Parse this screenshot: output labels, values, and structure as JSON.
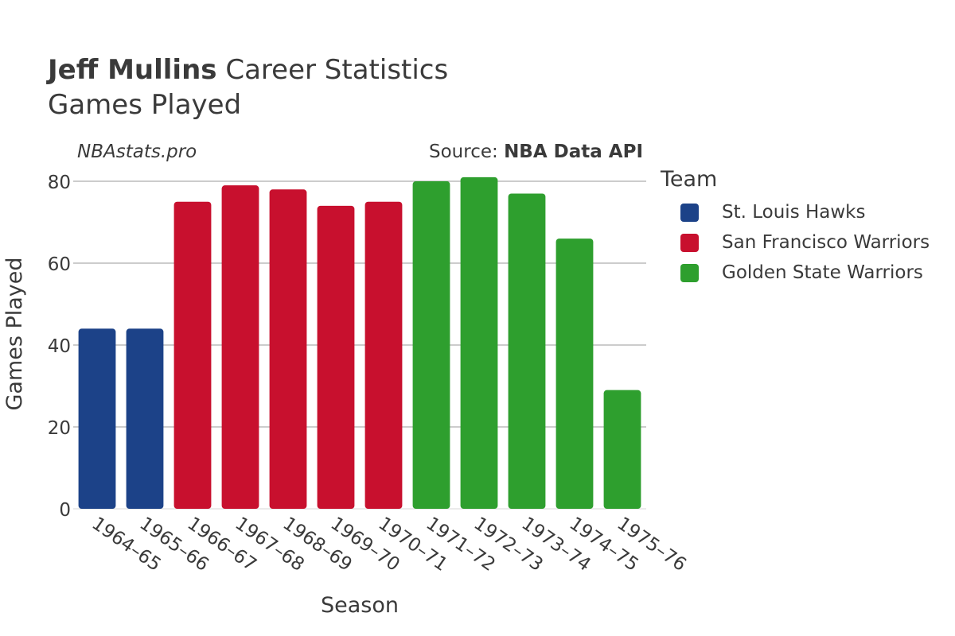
{
  "title": {
    "bold": "Jeff Mullins",
    "rest": "Career Statistics",
    "subtitle": "Games Played"
  },
  "watermark": "NBAstats.pro",
  "source": {
    "prefix": "Source: ",
    "name": "NBA Data API"
  },
  "legend": {
    "title": "Team",
    "items": [
      {
        "label": "St. Louis Hawks",
        "color": "#1c4288"
      },
      {
        "label": "San Francisco Warriors",
        "color": "#c8102e"
      },
      {
        "label": "Golden State Warriors",
        "color": "#2e9f2e"
      }
    ]
  },
  "chart_data": {
    "type": "bar",
    "xlabel": "Season",
    "ylabel": "Games Played",
    "ylim": [
      0,
      80
    ],
    "yticks": [
      0,
      20,
      40,
      60,
      80
    ],
    "grid": true,
    "legend_position": "right",
    "categories": [
      "1964–65",
      "1965–66",
      "1966–67",
      "1967–68",
      "1968–69",
      "1969–70",
      "1970–71",
      "1971–72",
      "1972–73",
      "1973–74",
      "1974–75",
      "1975–76"
    ],
    "values": [
      44,
      44,
      75,
      79,
      78,
      74,
      75,
      80,
      81,
      77,
      66,
      29
    ],
    "teams": [
      "St. Louis Hawks",
      "St. Louis Hawks",
      "San Francisco Warriors",
      "San Francisco Warriors",
      "San Francisco Warriors",
      "San Francisco Warriors",
      "San Francisco Warriors",
      "Golden State Warriors",
      "Golden State Warriors",
      "Golden State Warriors",
      "Golden State Warriors",
      "Golden State Warriors"
    ]
  }
}
